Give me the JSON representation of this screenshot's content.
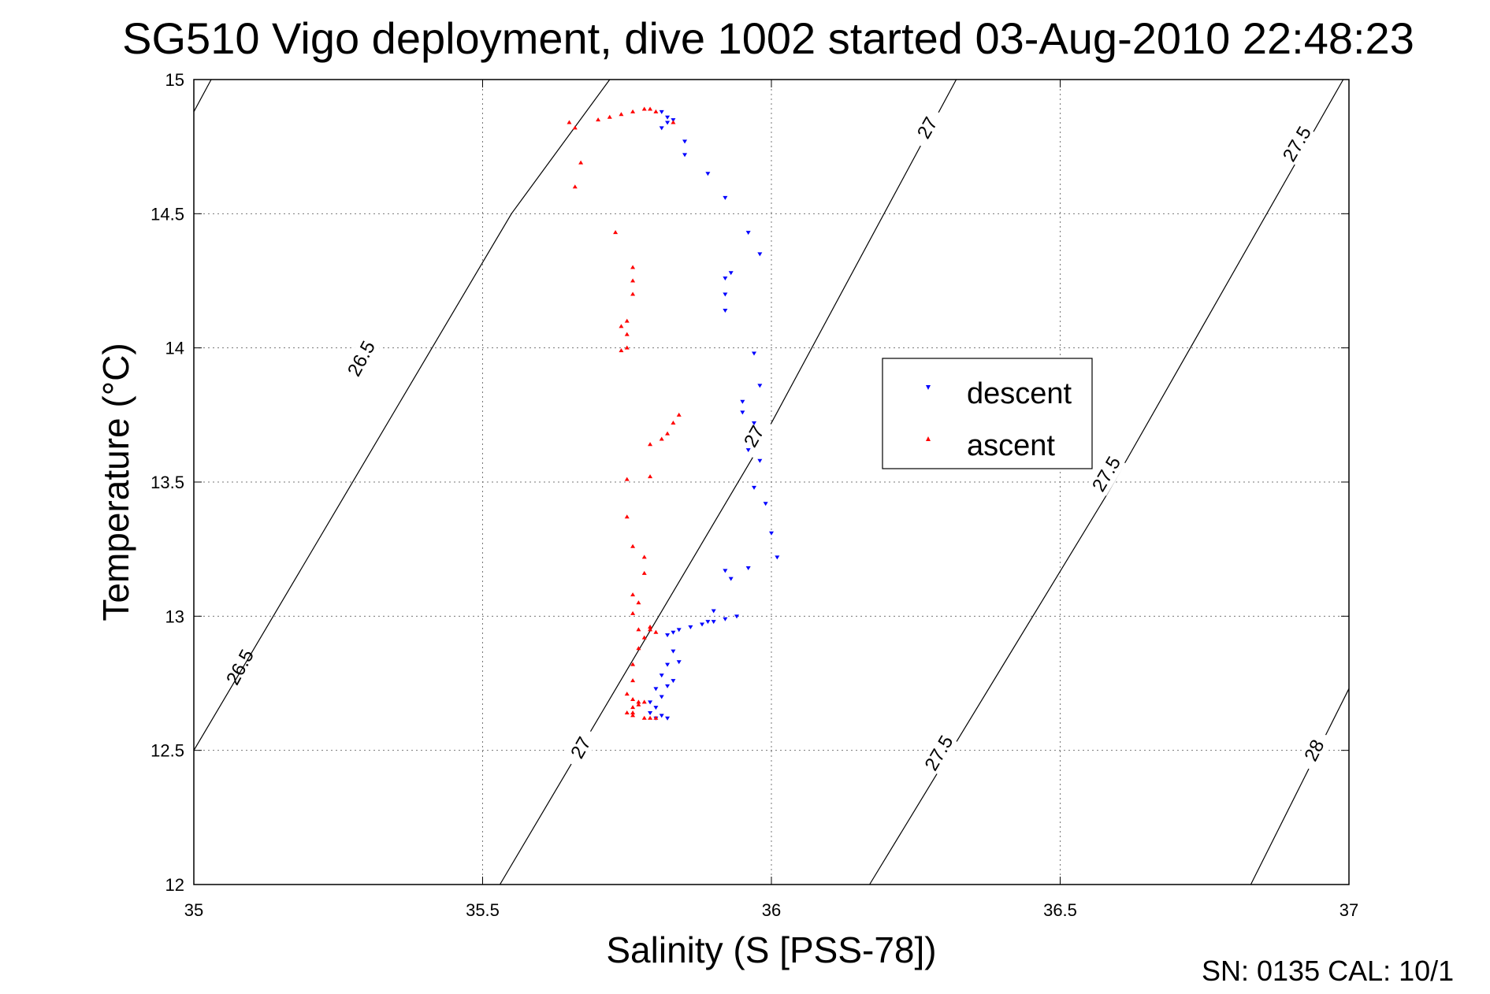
{
  "chart_data": {
    "type": "scatter",
    "title": "SG510 Vigo deployment, dive 1002 started 03-Aug-2010 22:48:23",
    "xlabel": "Salinity (S [PSS-78])",
    "ylabel": "Temperature (°C)",
    "xlim": [
      35,
      37
    ],
    "ylim": [
      12,
      15
    ],
    "xticks": [
      35,
      35.5,
      36,
      36.5,
      37
    ],
    "xtick_labels": [
      "35",
      "35.5",
      "36",
      "36.5",
      "37"
    ],
    "yticks": [
      12,
      12.5,
      13,
      13.5,
      14,
      14.5,
      15
    ],
    "ytick_labels": [
      "12",
      "12.5",
      "13",
      "13.5",
      "14",
      "14.5",
      "15"
    ],
    "grid": true,
    "legend_position": "center-right",
    "footer_text": "SN: 0135  CAL: 10/1",
    "series": [
      {
        "name": "descent",
        "marker": "triangle-down",
        "color": "#0000ff",
        "x": [
          35.81,
          35.82,
          35.82,
          35.81,
          35.83,
          35.85,
          35.85,
          35.89,
          35.92,
          35.96,
          35.98,
          35.93,
          35.92,
          35.92,
          35.92,
          35.95,
          35.97,
          35.98,
          35.97,
          35.95,
          35.96,
          35.98,
          35.97,
          35.99,
          36.0,
          36.01,
          35.96,
          35.93,
          35.92,
          35.9,
          35.89,
          35.94,
          35.92,
          35.9,
          35.88,
          35.86,
          35.84,
          35.83,
          35.82,
          35.83,
          35.84,
          35.82,
          35.83,
          35.81,
          35.82,
          35.8,
          35.81,
          35.79,
          35.8,
          35.79,
          35.81,
          35.8,
          35.82
        ],
        "y": [
          14.88,
          14.86,
          14.84,
          14.82,
          14.85,
          14.77,
          14.72,
          14.65,
          14.56,
          14.43,
          14.35,
          14.28,
          14.26,
          14.2,
          14.14,
          13.8,
          13.98,
          13.86,
          13.72,
          13.76,
          13.62,
          13.58,
          13.48,
          13.42,
          13.31,
          13.22,
          13.18,
          13.14,
          13.17,
          13.02,
          12.98,
          13.0,
          12.99,
          12.98,
          12.97,
          12.96,
          12.95,
          12.94,
          12.93,
          12.87,
          12.83,
          12.82,
          12.76,
          12.78,
          12.74,
          12.73,
          12.7,
          12.68,
          12.66,
          12.64,
          12.63,
          12.62,
          12.62
        ]
      },
      {
        "name": "ascent",
        "marker": "triangle-up",
        "color": "#ff0000",
        "x": [
          35.66,
          35.67,
          35.66,
          35.65,
          35.7,
          35.72,
          35.74,
          35.76,
          35.78,
          35.79,
          35.8,
          35.83,
          35.73,
          35.76,
          35.76,
          35.76,
          35.74,
          35.75,
          35.75,
          35.75,
          35.74,
          35.79,
          35.82,
          35.83,
          35.84,
          35.81,
          35.79,
          35.75,
          35.75,
          35.76,
          35.78,
          35.78,
          35.76,
          35.77,
          35.76,
          35.79,
          35.77,
          35.79,
          35.8,
          35.78,
          35.77,
          35.76,
          35.76,
          35.75,
          35.76,
          35.77,
          35.78,
          35.77,
          35.76,
          35.76,
          35.75,
          35.76,
          35.78,
          35.79,
          35.8
        ],
        "y": [
          14.82,
          14.69,
          14.6,
          14.84,
          14.85,
          14.86,
          14.87,
          14.88,
          14.89,
          14.89,
          14.88,
          14.84,
          14.43,
          14.3,
          14.25,
          14.2,
          14.08,
          14.1,
          14.05,
          14.0,
          13.99,
          13.64,
          13.68,
          13.72,
          13.75,
          13.66,
          13.52,
          13.51,
          13.37,
          13.26,
          13.22,
          13.16,
          13.08,
          13.05,
          13.01,
          12.96,
          12.95,
          12.95,
          12.94,
          12.92,
          12.88,
          12.82,
          12.76,
          12.71,
          12.69,
          12.68,
          12.68,
          12.67,
          12.66,
          12.64,
          12.64,
          12.63,
          12.62,
          12.62,
          12.62
        ]
      }
    ],
    "contours": [
      {
        "level": 26.5,
        "label": "26.5",
        "path": [
          [
            35.0,
            14.88
          ],
          [
            35.03,
            15.0
          ]
        ],
        "label_positions": [
          [
            35.29,
            13.96
          ],
          [
            35.08,
            12.81
          ]
        ]
      },
      {
        "level": 26.5,
        "label": "26.5",
        "path": [
          [
            35.0,
            12.5
          ],
          [
            35.55,
            14.5
          ],
          [
            35.72,
            15.0
          ]
        ],
        "label_positions": []
      },
      {
        "level": 27,
        "label": "27",
        "path": [
          [
            35.53,
            12.0
          ],
          [
            35.97,
            13.6
          ],
          [
            36.32,
            15.0
          ]
        ],
        "label_positions": [
          [
            36.27,
            14.82
          ],
          [
            35.97,
            13.67
          ],
          [
            35.67,
            12.51
          ]
        ]
      },
      {
        "level": 27.5,
        "label": "27.5",
        "path": [
          [
            36.17,
            12.0
          ],
          [
            36.58,
            13.45
          ],
          [
            36.99,
            15.0
          ]
        ],
        "label_positions": [
          [
            36.91,
            14.76
          ],
          [
            36.58,
            13.53
          ],
          [
            36.29,
            12.49
          ]
        ]
      },
      {
        "level": 28,
        "label": "28",
        "path": [
          [
            36.83,
            12.0
          ],
          [
            37.0,
            12.73
          ]
        ],
        "label_positions": [
          [
            36.94,
            12.5
          ]
        ]
      }
    ]
  }
}
